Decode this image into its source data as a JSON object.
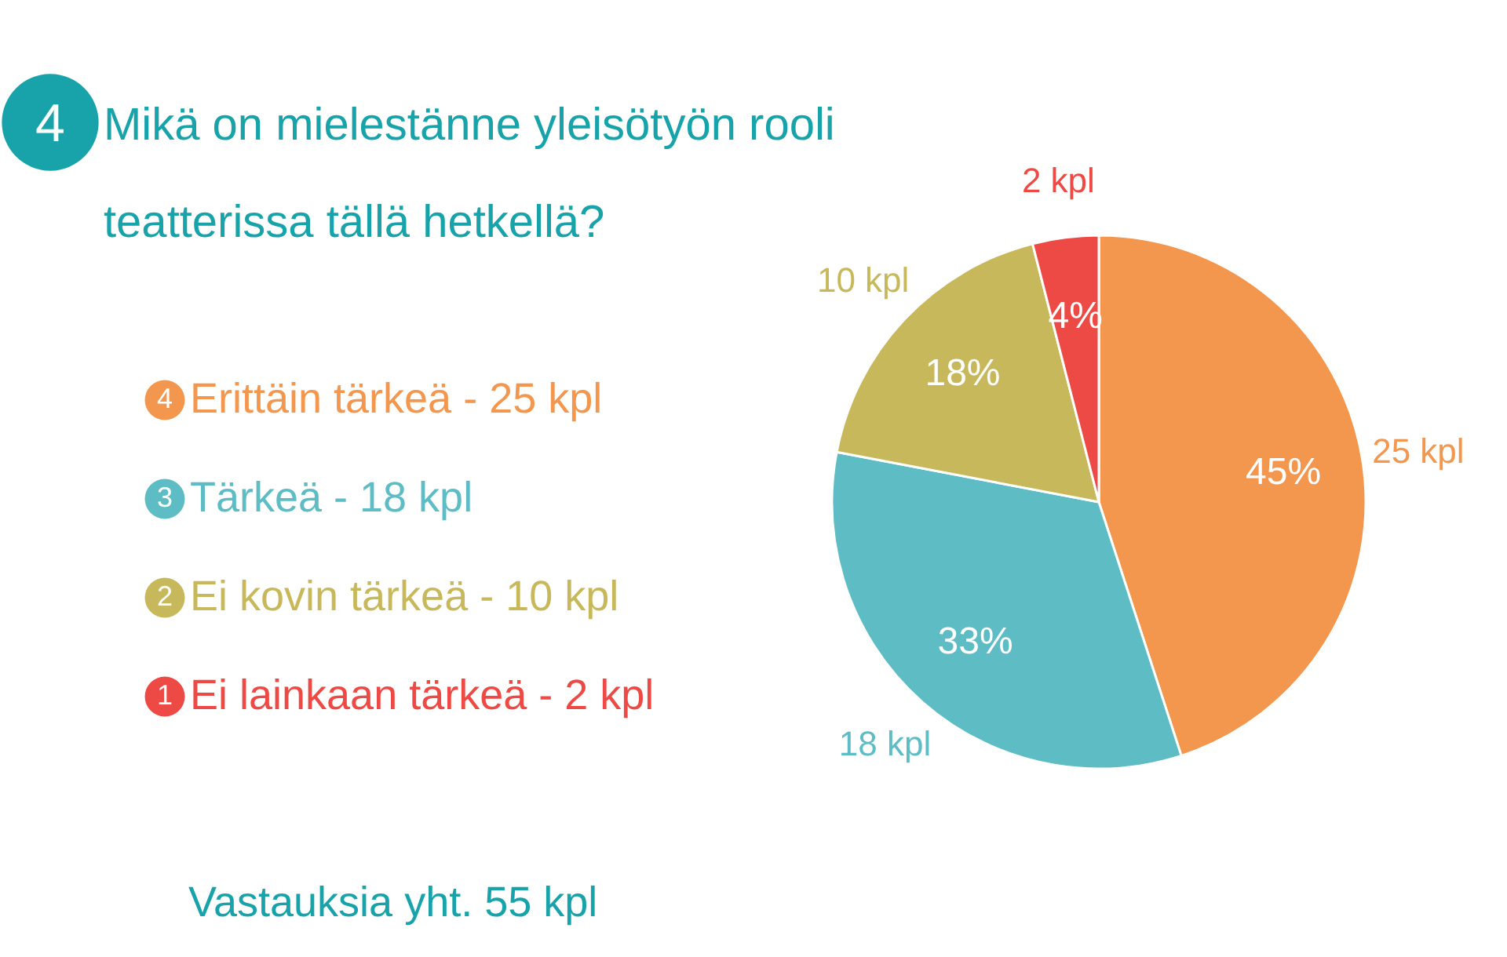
{
  "chart_data": {
    "type": "pie",
    "title": "Mikä on mielestänne yleisötyön rooli teatterissa tällä hetkellä?",
    "categories": [
      "Erittäin tärkeä  - 25 kpl",
      "Tärkeä  - 18 kpl",
      "Ei kovin tärkeä  - 10 kpl",
      "Ei lainkaan tärkeä  - 2 kpl"
    ],
    "values": [
      45,
      33,
      18,
      4
    ],
    "colors": [
      "#f3964e",
      "#5dbcc4",
      "#c8b85c",
      "#ee4a45"
    ],
    "value_labels": [
      "45%",
      "33%",
      "18%",
      "4%"
    ],
    "legend": "left",
    "annotations": [
      "4",
      "4",
      "3",
      "2",
      "1",
      "25 kpl",
      "18 kpl",
      "10 kpl",
      "2 kpl",
      "Vastauksia yht. 55 kpl"
    ]
  }
}
